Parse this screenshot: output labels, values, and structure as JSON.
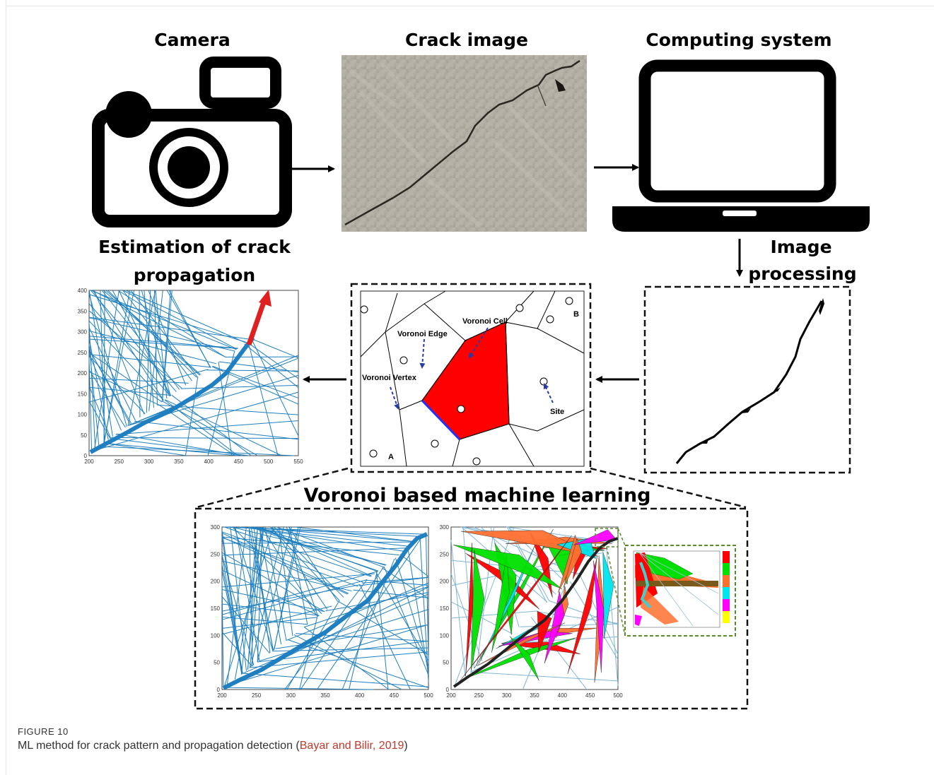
{
  "stages": {
    "camera": "Camera",
    "crack_image": "Crack image",
    "computing": "Computing system",
    "image_processing_1": "Image",
    "image_processing_2": "processing",
    "estimation_1": "Estimation of crack",
    "estimation_2": "propagation",
    "voronoi_ml": "Voronoi based machine learning"
  },
  "voronoi_labels": {
    "edge": "Voronoi Edge",
    "cell": "Voronoi Cell",
    "vertex": "Voronoi Vertex",
    "site": "Site",
    "a": "A",
    "b": "B"
  },
  "plot_left": {
    "x_ticks": [
      "200",
      "250",
      "300",
      "350",
      "400",
      "450",
      "500",
      "550"
    ],
    "y_ticks": [
      "0",
      "50",
      "100",
      "150",
      "200",
      "250",
      "300",
      "350",
      "400"
    ]
  },
  "plot_bottom_left": {
    "x_ticks": [
      "200",
      "250",
      "300",
      "350",
      "400",
      "450",
      "500"
    ],
    "y_ticks": [
      "0",
      "50",
      "100",
      "150",
      "200",
      "250",
      "300"
    ]
  },
  "plot_bottom_right": {
    "x_ticks": [
      "200",
      "250",
      "300",
      "350",
      "400",
      "450",
      "500"
    ],
    "y_ticks": [
      "0",
      "50",
      "100",
      "150",
      "200",
      "250",
      "300"
    ]
  },
  "colors": {
    "network": "#1f7fc0",
    "arrow": "#e02020",
    "cell": "#ff0000",
    "green": "#00e000",
    "orange": "#ff7030",
    "cyan": "#00e5ee",
    "magenta": "#ff00ff",
    "yellow": "#ffff00",
    "inset_border": "#5a8a2a"
  },
  "caption": {
    "figure_no": "FIGURE 10",
    "text": "ML method for crack pattern and propagation detection (",
    "ref": "Bayar and Bilir, 2019",
    "close": ")"
  }
}
